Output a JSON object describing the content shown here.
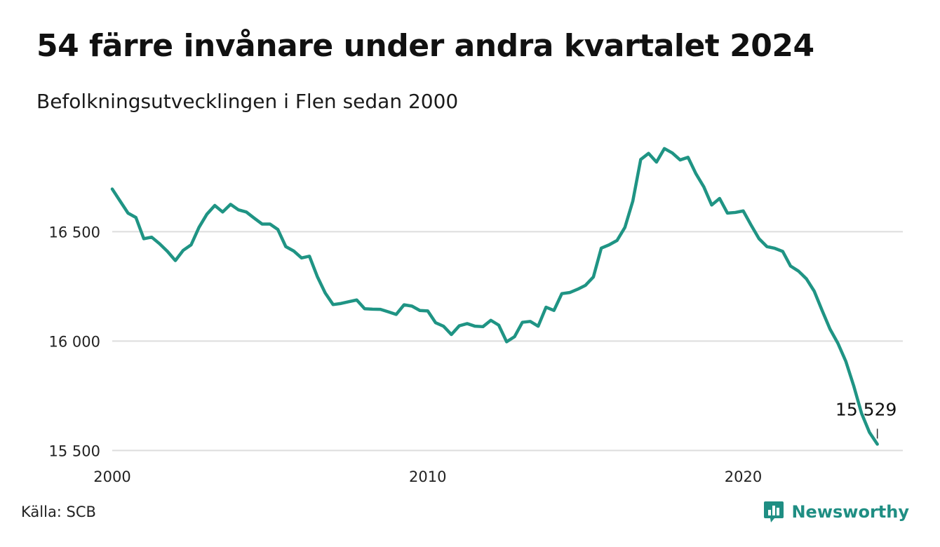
{
  "header": {
    "title": "54 färre invånare under andra kvartalet 2024",
    "subtitle": "Befolkningsutvecklingen i Flen sedan 2000"
  },
  "footer": {
    "source": "Källa: SCB",
    "brand": "Newsworthy",
    "brand_icon": "bar-chart-icon"
  },
  "colors": {
    "line": "#1f9484",
    "grid": "#dddddd",
    "brand": "#1f8e83"
  },
  "chart_data": {
    "type": "line",
    "x_start": 2000,
    "x_step": 0.25,
    "xlim": [
      2000,
      2025
    ],
    "ylim": [
      15500,
      16950
    ],
    "x_ticks": [
      2000,
      2010,
      2020
    ],
    "x_tick_labels": [
      "2000",
      "2010",
      "2020"
    ],
    "y_ticks": [
      15500,
      16000,
      16500
    ],
    "y_tick_labels": [
      "15 500",
      "16 000",
      "16 500"
    ],
    "grid": true,
    "annotation": {
      "x": 2024.25,
      "value": 15529,
      "label": "15 529"
    },
    "series": [
      {
        "values": [
          16695,
          16640,
          16585,
          16565,
          16468,
          16475,
          16445,
          16410,
          16368,
          16415,
          16440,
          16520,
          16580,
          16620,
          16590,
          16625,
          16600,
          16590,
          16562,
          16535,
          16535,
          16510,
          16432,
          16412,
          16380,
          16388,
          16295,
          16220,
          16167,
          16172,
          16180,
          16188,
          16148,
          16146,
          16145,
          16134,
          16122,
          16166,
          16160,
          16140,
          16138,
          16084,
          16068,
          16030,
          16070,
          16080,
          16068,
          16066,
          16095,
          16073,
          15997,
          16020,
          16086,
          16090,
          16068,
          16155,
          16140,
          16217,
          16222,
          16237,
          16255,
          16293,
          16425,
          16440,
          16460,
          16520,
          16640,
          16830,
          16858,
          16818,
          16880,
          16860,
          16828,
          16840,
          16765,
          16705,
          16622,
          16652,
          16585,
          16588,
          16595,
          16530,
          16468,
          16432,
          16424,
          16410,
          16343,
          16320,
          16285,
          16228,
          16140,
          16055,
          15990,
          15908,
          15796,
          15670,
          15583,
          15529
        ]
      }
    ]
  }
}
